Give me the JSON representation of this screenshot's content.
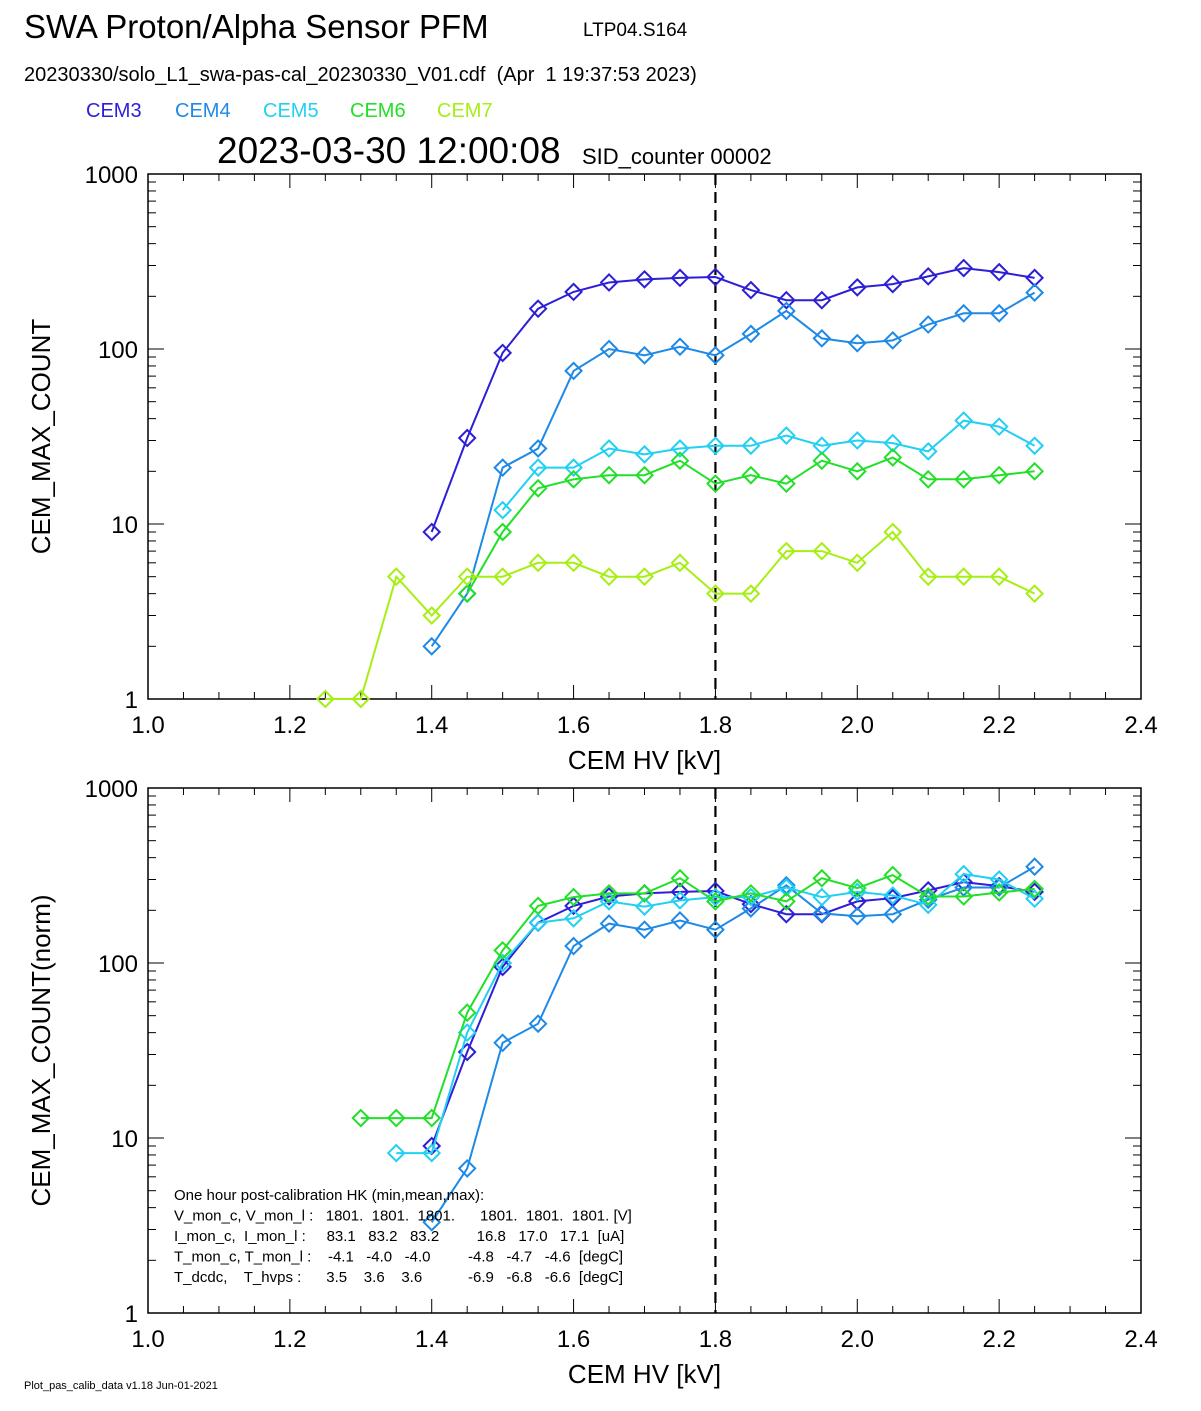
{
  "header": {
    "title": "SWA Proton/Alpha Sensor PFM",
    "code": "LTP04.S164",
    "file_line": "20230330/solo_L1_swa-pas-cal_20230330_V01.cdf  (Apr  1 19:37:53 2023)",
    "timestamp": "2023-03-30 12:00:08",
    "sid": "SID_counter 00002"
  },
  "legend": [
    {
      "name": "CEM3",
      "color": "#2d1fd6"
    },
    {
      "name": "CEM4",
      "color": "#1e8ae6"
    },
    {
      "name": "CEM5",
      "color": "#22d0f2"
    },
    {
      "name": "CEM6",
      "color": "#22e02a"
    },
    {
      "name": "CEM7",
      "color": "#a6ef14"
    }
  ],
  "footer": "Plot_pas_calib_data v1.18 Jun-01-2021",
  "chart_data": [
    {
      "type": "line",
      "xlabel": "CEM HV [kV]",
      "ylabel": "CEM_MAX_COUNT",
      "xlim": [
        1.0,
        2.4
      ],
      "ylim": [
        1,
        1000
      ],
      "yscale": "log",
      "xticks": [
        "1.0",
        "1.2",
        "1.4",
        "1.6",
        "1.8",
        "2.0",
        "2.2",
        "2.4"
      ],
      "yticks": [
        "1",
        "10",
        "100",
        "1000"
      ],
      "vline": 1.8,
      "series": [
        {
          "name": "CEM3",
          "color": "#2d1fd6",
          "x": [
            1.4,
            1.45,
            1.5,
            1.55,
            1.6,
            1.65,
            1.7,
            1.75,
            1.8,
            1.85,
            1.9,
            1.95,
            2.0,
            2.05,
            2.1,
            2.15,
            2.2,
            2.25
          ],
          "y": [
            9,
            31,
            95,
            170,
            212,
            240,
            250,
            255,
            258,
            217,
            190,
            190,
            225,
            235,
            260,
            290,
            275,
            255
          ]
        },
        {
          "name": "CEM4",
          "color": "#1e8ae6",
          "x": [
            1.4,
            1.45,
            1.5,
            1.55,
            1.6,
            1.65,
            1.7,
            1.75,
            1.8,
            1.85,
            1.9,
            1.95,
            2.0,
            2.05,
            2.1,
            2.15,
            2.2,
            2.25
          ],
          "y": [
            2,
            4,
            21,
            27,
            75,
            100,
            92,
            103,
            92,
            122,
            165,
            115,
            108,
            112,
            138,
            160,
            160,
            210
          ]
        },
        {
          "name": "CEM5",
          "color": "#22d0f2",
          "x": [
            1.5,
            1.55,
            1.6,
            1.65,
            1.7,
            1.75,
            1.8,
            1.85,
            1.9,
            1.95,
            2.0,
            2.05,
            2.1,
            2.15,
            2.2,
            2.25
          ],
          "y": [
            12,
            21,
            21,
            27,
            25,
            27,
            28,
            28,
            32,
            28,
            30,
            29,
            26,
            39,
            36,
            28
          ]
        },
        {
          "name": "CEM6",
          "color": "#22e02a",
          "x": [
            1.45,
            1.5,
            1.55,
            1.6,
            1.65,
            1.7,
            1.75,
            1.8,
            1.85,
            1.9,
            1.95,
            2.0,
            2.05,
            2.1,
            2.15,
            2.2,
            2.25
          ],
          "y": [
            4,
            9,
            16,
            18,
            19,
            19,
            23,
            17,
            19,
            17,
            23,
            20,
            24,
            18,
            18,
            19,
            20
          ]
        },
        {
          "name": "CEM7",
          "color": "#a6ef14",
          "x": [
            1.25,
            1.3,
            1.35,
            1.4,
            1.45,
            1.5,
            1.55,
            1.6,
            1.65,
            1.7,
            1.75,
            1.8,
            1.85,
            1.9,
            1.95,
            2.0,
            2.05,
            2.1,
            2.15,
            2.2,
            2.25
          ],
          "y": [
            1,
            1,
            5,
            3,
            5,
            5,
            6,
            6,
            5,
            5,
            6,
            4,
            4,
            7,
            7,
            6,
            9,
            5,
            5,
            5,
            4
          ]
        }
      ]
    },
    {
      "type": "line",
      "xlabel": "CEM HV [kV]",
      "ylabel": "CEM_MAX_COUNT(norm)",
      "xlim": [
        1.0,
        2.4
      ],
      "ylim": [
        1,
        1000
      ],
      "yscale": "log",
      "xticks": [
        "1.0",
        "1.2",
        "1.4",
        "1.6",
        "1.8",
        "2.0",
        "2.2",
        "2.4"
      ],
      "yticks": [
        "1",
        "10",
        "100",
        "1000"
      ],
      "vline": 1.8,
      "series": [
        {
          "name": "CEM3",
          "color": "#2d1fd6",
          "x": [
            1.4,
            1.45,
            1.5,
            1.55,
            1.6,
            1.65,
            1.7,
            1.75,
            1.8,
            1.85,
            1.9,
            1.95,
            2.0,
            2.05,
            2.1,
            2.15,
            2.2,
            2.25
          ],
          "y": [
            9,
            31,
            95,
            170,
            212,
            240,
            250,
            255,
            258,
            217,
            190,
            190,
            225,
            235,
            260,
            290,
            275,
            255
          ]
        },
        {
          "name": "CEM4",
          "color": "#1e8ae6",
          "x": [
            1.4,
            1.45,
            1.5,
            1.55,
            1.6,
            1.65,
            1.7,
            1.75,
            1.8,
            1.85,
            1.9,
            1.95,
            2.0,
            2.05,
            2.1,
            2.15,
            2.2,
            2.25
          ],
          "y": [
            3.3,
            6.7,
            35,
            45,
            125,
            168,
            155,
            175,
            155,
            205,
            278,
            192,
            185,
            190,
            230,
            270,
            270,
            355
          ]
        },
        {
          "name": "CEM5",
          "color": "#22d0f2",
          "x": [
            1.35,
            1.4,
            1.45,
            1.5,
            1.55,
            1.6,
            1.65,
            1.7,
            1.75,
            1.8,
            1.85,
            1.9,
            1.95,
            2.0,
            2.05,
            2.1,
            2.15,
            2.2,
            2.25
          ],
          "y": [
            8.2,
            8.2,
            40,
            100,
            170,
            180,
            225,
            210,
            228,
            238,
            238,
            270,
            238,
            255,
            243,
            215,
            322,
            300,
            233
          ]
        },
        {
          "name": "CEM6",
          "color": "#22e02a",
          "x": [
            1.3,
            1.35,
            1.4,
            1.45,
            1.5,
            1.55,
            1.6,
            1.65,
            1.7,
            1.75,
            1.8,
            1.85,
            1.9,
            1.95,
            2.0,
            2.05,
            2.1,
            2.15,
            2.2,
            2.25
          ],
          "y": [
            13,
            13,
            13,
            52,
            118,
            212,
            238,
            250,
            250,
            305,
            225,
            250,
            225,
            305,
            268,
            318,
            240,
            240,
            253,
            265
          ]
        }
      ],
      "hk_text": [
        "One hour post-calibration HK (min,mean,max):",
        "V_mon_c, V_mon_l :   1801.  1801.  1801.      1801.  1801.  1801. [V]",
        "I_mon_c,  I_mon_l :     83.1   83.2   83.2         16.8   17.0   17.1  [uA]",
        "T_mon_c, T_mon_l :    -4.1   -4.0   -4.0         -4.8   -4.7   -4.6  [degC]",
        "T_dcdc,    T_hvps :      3.5    3.6    3.6           -6.9   -6.8   -6.6  [degC]"
      ]
    }
  ]
}
